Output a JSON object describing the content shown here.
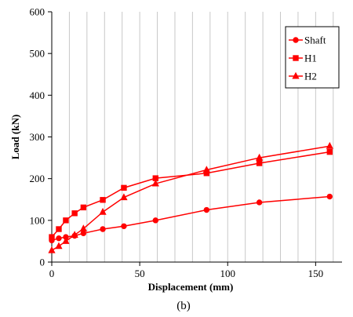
{
  "chart_data": {
    "type": "line",
    "title": "",
    "caption": "(b)",
    "xlabel": "Displacement (mm)",
    "ylabel": "Load (kN)",
    "xlim": [
      0,
      165
    ],
    "ylim": [
      0,
      600
    ],
    "xticks": [
      0,
      50,
      100,
      150
    ],
    "yticks": [
      0,
      100,
      200,
      300,
      400,
      500,
      600
    ],
    "x_gridlines": [
      10,
      20,
      30,
      40,
      50,
      60,
      70,
      80,
      90,
      100,
      110,
      120,
      130,
      140,
      150,
      160
    ],
    "grid": "vertical",
    "legend_position": "top-right",
    "color": "#ff0000",
    "series": [
      {
        "name": "Shaft",
        "marker": "circle",
        "points": [
          [
            0,
            52
          ],
          [
            4,
            57
          ],
          [
            8,
            60
          ],
          [
            13,
            63
          ],
          [
            18,
            69
          ],
          [
            29,
            79
          ],
          [
            41,
            86
          ],
          [
            59,
            100
          ],
          [
            88,
            125
          ],
          [
            118,
            143
          ],
          [
            158,
            157
          ]
        ]
      },
      {
        "name": "H1",
        "marker": "square",
        "points": [
          [
            0,
            60
          ],
          [
            4,
            79
          ],
          [
            8,
            100
          ],
          [
            13,
            117
          ],
          [
            18,
            131
          ],
          [
            29,
            149
          ],
          [
            41,
            178
          ],
          [
            59,
            201
          ],
          [
            88,
            213
          ],
          [
            118,
            237
          ],
          [
            158,
            264
          ]
        ]
      },
      {
        "name": "H2",
        "marker": "triangle",
        "points": [
          [
            0,
            28
          ],
          [
            4,
            38
          ],
          [
            8,
            50
          ],
          [
            13,
            65
          ],
          [
            18,
            80
          ],
          [
            29,
            120
          ],
          [
            41,
            155
          ],
          [
            59,
            188
          ],
          [
            88,
            221
          ],
          [
            118,
            250
          ],
          [
            158,
            278
          ]
        ]
      }
    ]
  }
}
